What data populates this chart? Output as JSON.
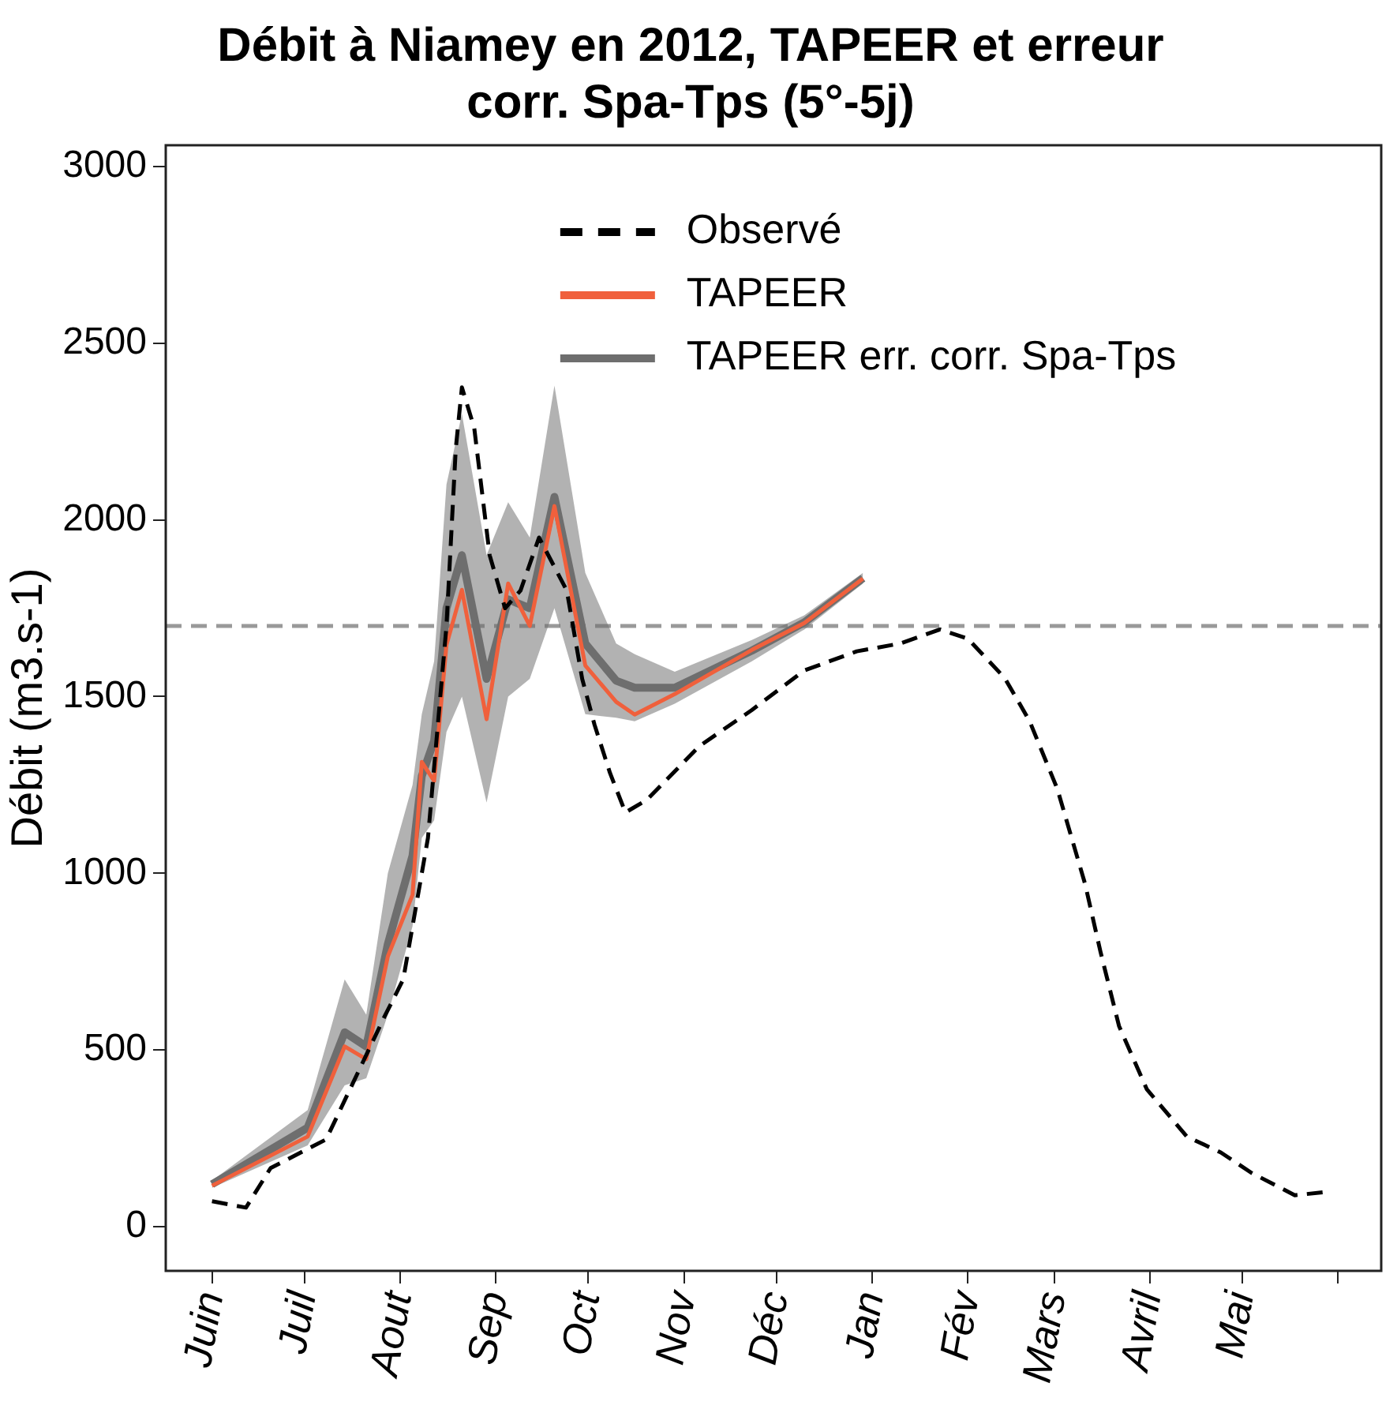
{
  "chart_data": {
    "type": "line",
    "title": "Débit à Niamey en 2012, TAPEER et erreur corr. Spa-Tps (5°-5j)",
    "ylabel": "Débit (m3.s-1)",
    "xlim": [
      "2012-05-17",
      "2013-06-15"
    ],
    "xticks": [
      {
        "value": "2012-06-01",
        "label": "Juin"
      },
      {
        "value": "2012-07-01",
        "label": "Juil"
      },
      {
        "value": "2012-08-01",
        "label": "Aout"
      },
      {
        "value": "2012-09-01",
        "label": "Sep"
      },
      {
        "value": "2012-10-01",
        "label": "Oct"
      },
      {
        "value": "2012-11-01",
        "label": "Nov"
      },
      {
        "value": "2012-12-01",
        "label": "Déc"
      },
      {
        "value": "2013-01-01",
        "label": "Jan"
      },
      {
        "value": "2013-02-01",
        "label": "Fév"
      },
      {
        "value": "2013-03-01",
        "label": "Mars"
      },
      {
        "value": "2013-04-01",
        "label": "Avril"
      },
      {
        "value": "2013-05-01",
        "label": "Mai"
      },
      {
        "value": "2013-06-01",
        "label": null
      }
    ],
    "ylim": [
      -125,
      3060
    ],
    "yticks": [
      0,
      500,
      1000,
      1500,
      2000,
      2500,
      3000
    ],
    "grid": false,
    "legend": "top",
    "marker": "none",
    "ref_lines": [
      {
        "axis": "y",
        "value": 1700,
        "color": "#999999",
        "line_style": "dashed"
      }
    ],
    "series": [
      {
        "name": "TAPEER err. corr. Spa-Tps",
        "color": "#6e6e6e",
        "x": [
          "2012-06-01",
          "2012-07-02",
          "2012-07-14",
          "2012-07-21",
          "2012-07-28",
          "2012-08-05",
          "2012-08-08",
          "2012-08-12",
          "2012-08-16",
          "2012-08-21",
          "2012-08-29",
          "2012-09-05",
          "2012-09-12",
          "2012-09-20",
          "2012-09-30",
          "2012-10-10",
          "2012-10-16",
          "2012-10-29",
          "2012-11-23",
          "2012-12-10",
          "2012-12-29"
        ],
        "values": [
          120,
          280,
          550,
          510,
          800,
          1050,
          1275,
          1375,
          1750,
          1900,
          1550,
          1775,
          1750,
          2065,
          1650,
          1545,
          1525,
          1525,
          1630,
          1710,
          1835
        ],
        "lower": [
          110,
          230,
          400,
          420,
          600,
          850,
          1100,
          1150,
          1400,
          1500,
          1200,
          1500,
          1550,
          1750,
          1450,
          1440,
          1430,
          1480,
          1600,
          1690,
          1820
        ],
        "upper": [
          130,
          330,
          700,
          600,
          1000,
          1250,
          1450,
          1600,
          2100,
          2300,
          1900,
          2050,
          1950,
          2380,
          1850,
          1650,
          1620,
          1570,
          1660,
          1730,
          1850
        ]
      },
      {
        "name": "TAPEER",
        "color": "#f0603c",
        "x": [
          "2012-06-01",
          "2012-07-02",
          "2012-07-14",
          "2012-07-21",
          "2012-07-28",
          "2012-08-05",
          "2012-08-08",
          "2012-08-12",
          "2012-08-16",
          "2012-08-21",
          "2012-08-29",
          "2012-09-05",
          "2012-09-12",
          "2012-09-20",
          "2012-09-30",
          "2012-10-10",
          "2012-10-16",
          "2012-10-29",
          "2012-11-23",
          "2012-12-10",
          "2012-12-29"
        ],
        "values": [
          116,
          255,
          510,
          474,
          765,
          939,
          1315,
          1261,
          1646,
          1802,
          1436,
          1820,
          1700,
          2039,
          1588,
          1485,
          1449,
          1507,
          1632,
          1708,
          1834
        ]
      },
      {
        "name": "Observé",
        "color": "#000000",
        "line_style": "dashed",
        "x": [
          "2012-06-01",
          "2012-06-12",
          "2012-06-20",
          "2012-07-08",
          "2012-07-27",
          "2012-08-02",
          "2012-08-10",
          "2012-08-16",
          "2012-08-19",
          "2012-08-21",
          "2012-08-25",
          "2012-08-30",
          "2012-09-04",
          "2012-09-09",
          "2012-09-15",
          "2012-09-24",
          "2012-09-29",
          "2012-10-03",
          "2012-10-08",
          "2012-10-13",
          "2012-10-20",
          "2012-11-06",
          "2012-11-23",
          "2012-12-10",
          "2012-12-27",
          "2013-01-10",
          "2013-01-23",
          "2013-02-01",
          "2013-02-13",
          "2013-02-21",
          "2013-03-02",
          "2013-03-11",
          "2013-03-16",
          "2013-03-22",
          "2013-03-31",
          "2013-04-13",
          "2013-04-24",
          "2013-05-04",
          "2013-05-18",
          "2013-05-28"
        ],
        "values": [
          72,
          54,
          166,
          247,
          596,
          700,
          1100,
          1700,
          2200,
          2375,
          2260,
          1900,
          1750,
          1800,
          1950,
          1800,
          1550,
          1420,
          1284,
          1172,
          1208,
          1360,
          1462,
          1574,
          1628,
          1650,
          1690,
          1664,
          1552,
          1431,
          1239,
          970,
          778,
          568,
          389,
          255,
          210,
          152,
          89,
          98
        ]
      }
    ]
  }
}
